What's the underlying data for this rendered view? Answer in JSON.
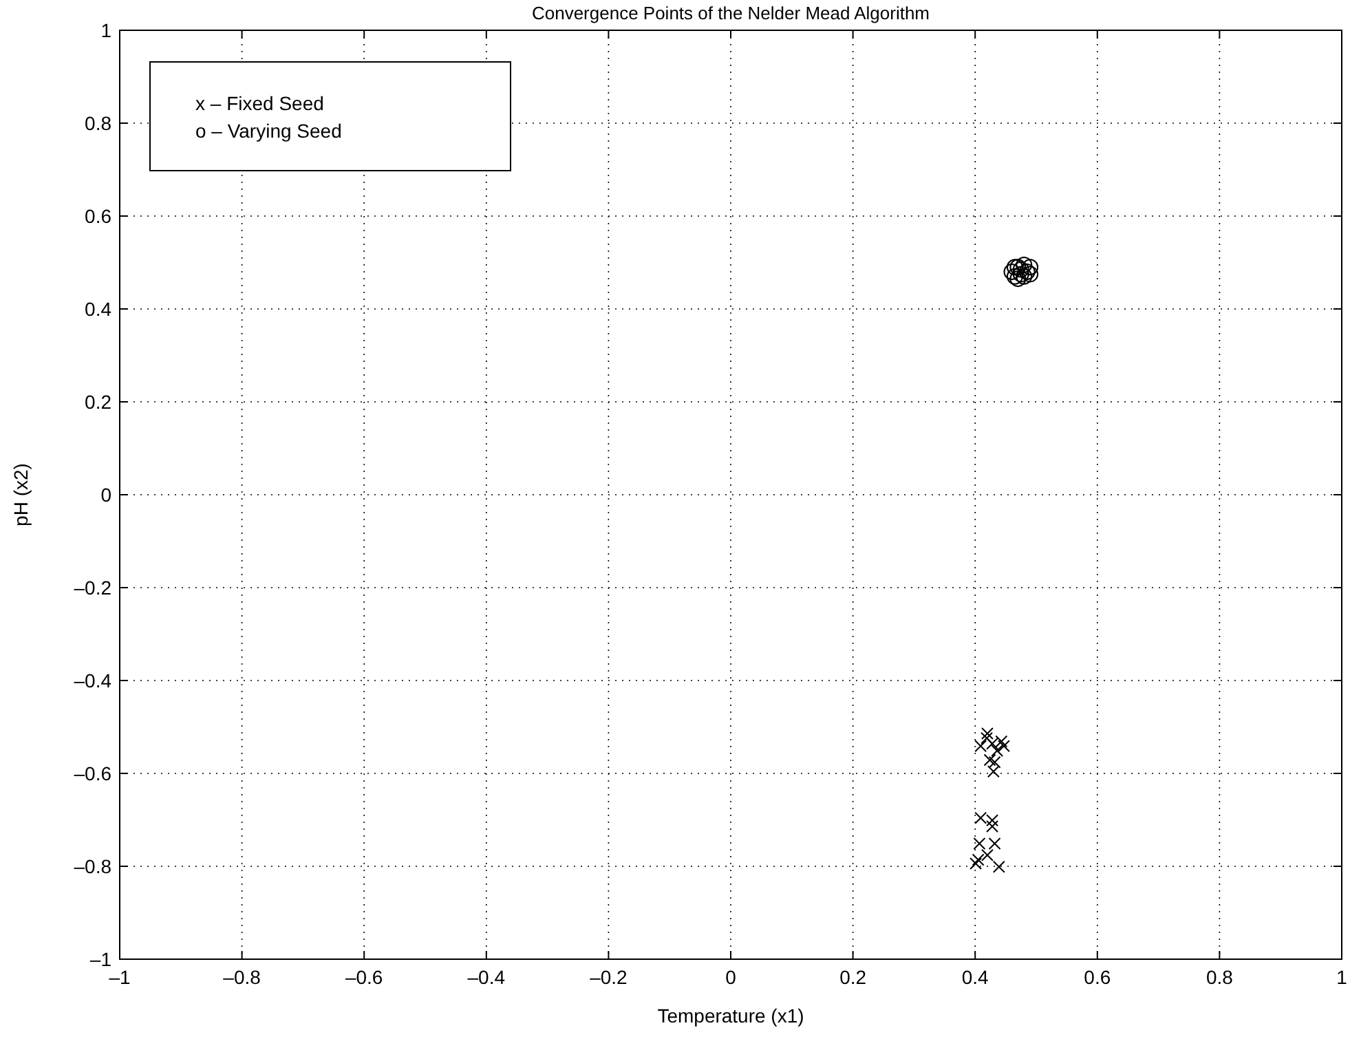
{
  "chart_data": {
    "type": "scatter",
    "title": "Convergence Points of the Nelder Mead Algorithm",
    "xlabel": "Temperature (x1)",
    "ylabel": "pH (x2)",
    "xlim": [
      -1,
      1
    ],
    "ylim": [
      -1,
      1
    ],
    "xticks": [
      {
        "value": -1,
        "label": "–1"
      },
      {
        "value": -0.8,
        "label": "–0.8"
      },
      {
        "value": -0.6,
        "label": "–0.6"
      },
      {
        "value": -0.4,
        "label": "–0.4"
      },
      {
        "value": -0.2,
        "label": "–0.2"
      },
      0,
      0.2,
      0.4,
      0.6,
      0.8,
      1
    ],
    "yticks": [
      {
        "value": -1,
        "label": "–1"
      },
      {
        "value": -0.8,
        "label": "–0.8"
      },
      {
        "value": -0.6,
        "label": "–0.6"
      },
      {
        "value": -0.4,
        "label": "–0.4"
      },
      {
        "value": -0.2,
        "label": "–0.2"
      },
      0,
      0.2,
      0.4,
      0.6,
      0.8,
      1
    ],
    "grid": true,
    "annotations": [
      "x – Fixed Seed",
      "o – Varying Seed"
    ],
    "series": [
      {
        "color": "#000000",
        "marker": "cross",
        "x": [
          0.42,
          0.419,
          0.409,
          0.428,
          0.443,
          0.447,
          0.436,
          0.424,
          0.432,
          0.43,
          0.409,
          0.428,
          0.428,
          0.407,
          0.432,
          0.42,
          0.405,
          0.401,
          0.439
        ],
        "values": [
          -0.514,
          -0.524,
          -0.541,
          -0.536,
          -0.531,
          -0.541,
          -0.551,
          -0.571,
          -0.576,
          -0.596,
          -0.696,
          -0.701,
          -0.714,
          -0.751,
          -0.751,
          -0.776,
          -0.786,
          -0.794,
          -0.801
        ]
      },
      {
        "color": "#000000",
        "marker": "circle",
        "x": [
          0.46,
          0.47,
          0.48,
          0.49,
          0.465,
          0.475,
          0.485,
          0.47,
          0.48,
          0.49,
          0.475,
          0.465
        ],
        "values": [
          0.48,
          0.49,
          0.495,
          0.49,
          0.47,
          0.475,
          0.48,
          0.465,
          0.47,
          0.475,
          0.485,
          0.49
        ]
      }
    ]
  }
}
